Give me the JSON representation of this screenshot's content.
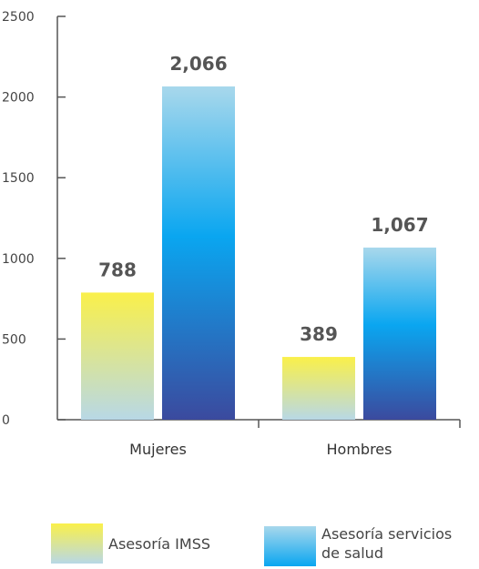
{
  "chart_data": {
    "type": "bar",
    "categories": [
      "Mujeres",
      "Hombres"
    ],
    "series": [
      {
        "name": "Asesoría IMSS",
        "values": [
          788,
          389
        ],
        "labels": [
          "788",
          "389"
        ]
      },
      {
        "name": "Asesoría servicios de salud",
        "values": [
          2066,
          1067
        ],
        "labels": [
          "2,066",
          "1,067"
        ]
      }
    ],
    "ylim": [
      0,
      2500
    ],
    "yticks": [
      0,
      500,
      1000,
      1500,
      2000,
      2500
    ],
    "ytick_labels": [
      "0",
      "500",
      "1000",
      "1500",
      "2000",
      "2500"
    ],
    "title": "",
    "xlabel": "",
    "ylabel": "",
    "grid": false,
    "legend_position": "bottom",
    "colors": {
      "imss_top": "#faf04a",
      "imss_bottom": "#b8d8e6",
      "salud_top": "#a8d8ec",
      "salud_mid": "#0aa6f0",
      "salud_bottom": "#3b4a9e",
      "axis": "#555555"
    }
  },
  "legend": [
    {
      "label_line1": "Asesoría IMSS",
      "label_line2": ""
    },
    {
      "label_line1": "Asesoría servicios",
      "label_line2": "de salud"
    }
  ]
}
